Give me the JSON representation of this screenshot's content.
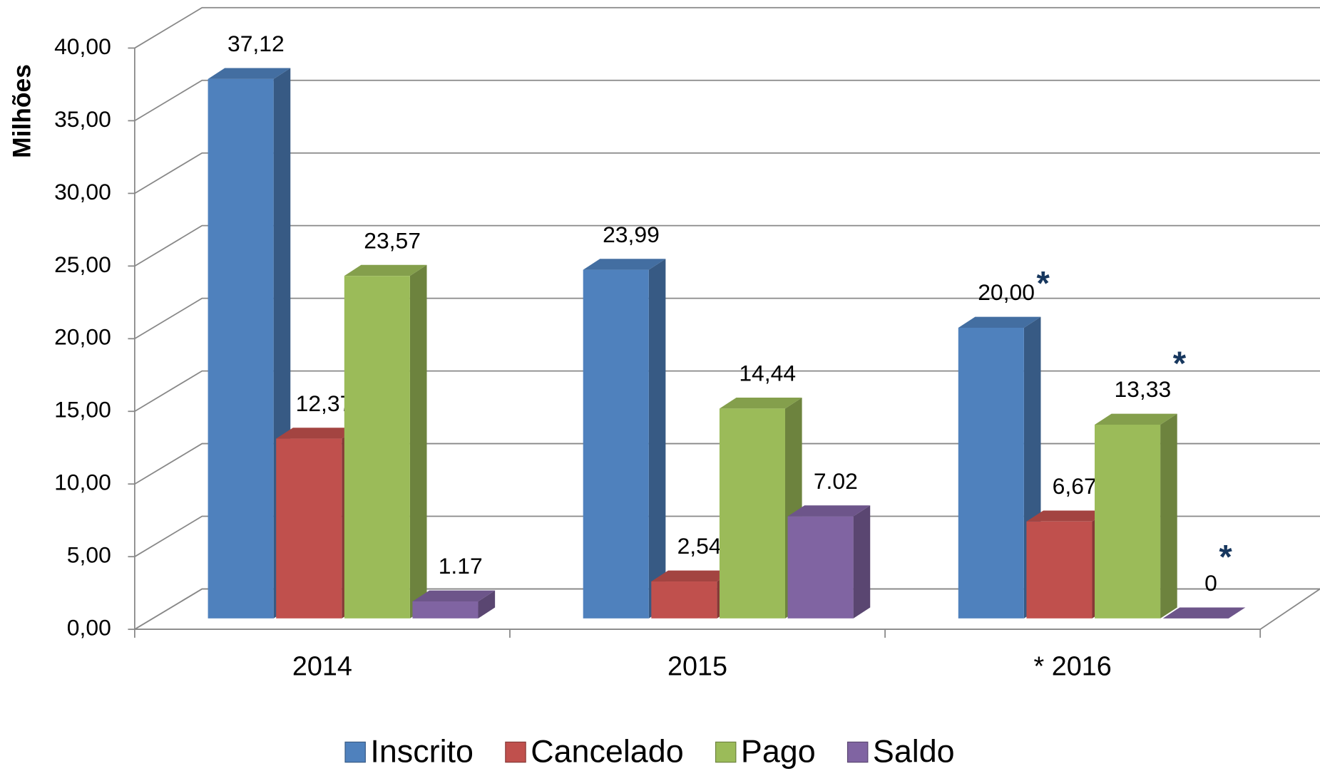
{
  "chart_data": {
    "type": "bar3d",
    "y_label": "Milhões",
    "categories": [
      "2014",
      "2015",
      "* 2016"
    ],
    "series": [
      {
        "name": "Inscrito",
        "color": "#4f81bd",
        "values": [
          37.12,
          23.99,
          20.0
        ],
        "value_labels": [
          "37,12",
          "23,99",
          "20,00"
        ],
        "notes": [
          null,
          null,
          "*"
        ]
      },
      {
        "name": "Cancelado",
        "color": "#c0504d",
        "values": [
          12.37,
          2.54,
          6.67
        ],
        "value_labels": [
          "12,37",
          "2,54",
          "6,67"
        ],
        "notes": [
          null,
          null,
          "*"
        ]
      },
      {
        "name": "Pago",
        "color": "#9bbb59",
        "values": [
          23.57,
          14.44,
          13.33
        ],
        "value_labels": [
          "23,57",
          "14,44",
          "13,33"
        ],
        "notes": [
          null,
          null,
          "*"
        ]
      },
      {
        "name": "Saldo",
        "color": "#8064a2",
        "values": [
          1.17,
          7.02,
          0
        ],
        "notes": [
          null,
          null,
          "*"
        ]
      }
    ],
    "ylim": [
      0,
      40
    ],
    "yticks": [
      {
        "value": 0,
        "label": "0,00"
      },
      {
        "value": 5,
        "label": "5,00"
      },
      {
        "value": 10,
        "label": "10,00"
      },
      {
        "value": 15,
        "label": "15,00"
      },
      {
        "value": 20,
        "label": "20,00"
      },
      {
        "value": 25,
        "label": "25,00"
      },
      {
        "value": 30,
        "label": "30,00"
      },
      {
        "value": 35,
        "label": "35,00"
      },
      {
        "value": 40,
        "label": "40,00"
      }
    ],
    "grid": true,
    "legend": "bottom"
  }
}
